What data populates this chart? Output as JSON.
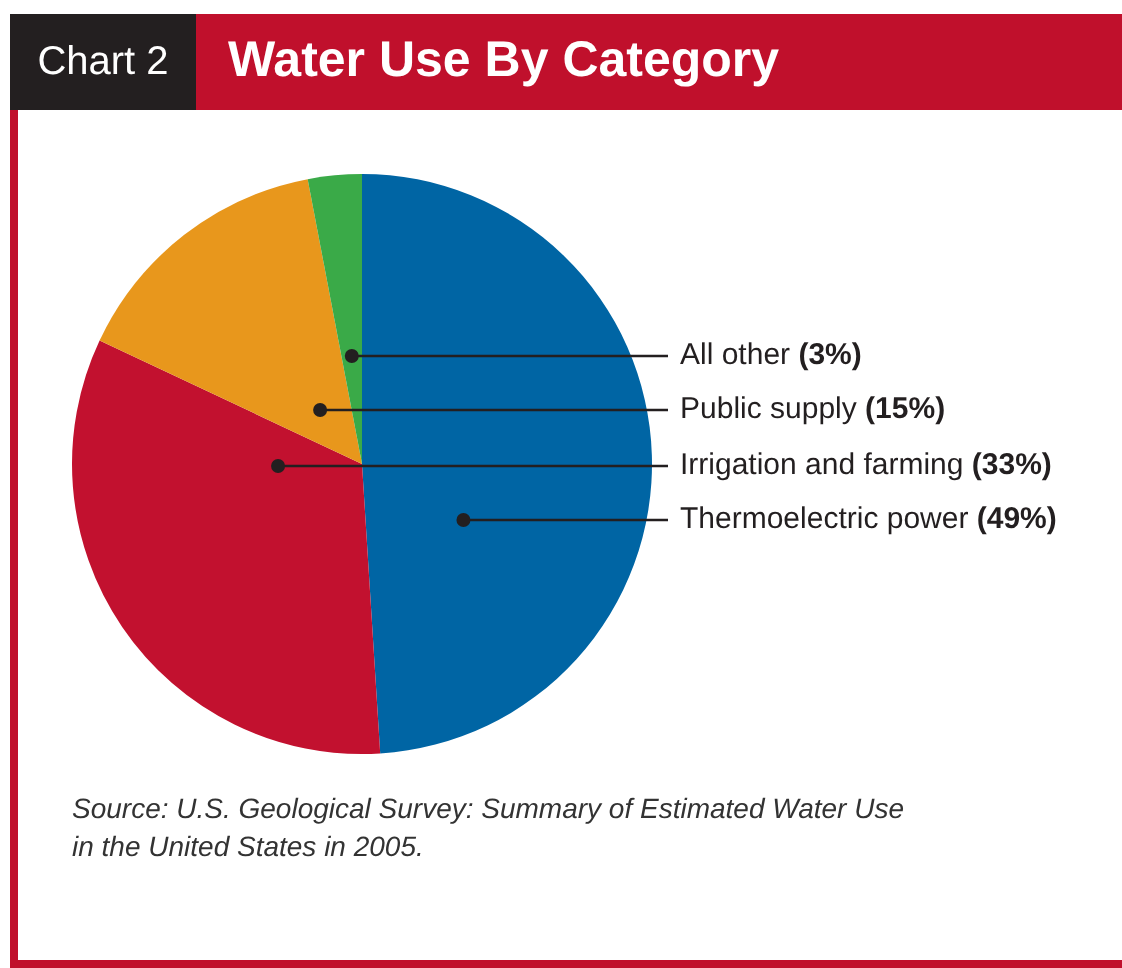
{
  "chart_data": {
    "type": "pie",
    "title": "Water Use By Category",
    "annotations": [
      "Chart 2",
      "Source: U.S. Geological Survey: Summary of Estimated Water Use in the United States in 2005."
    ],
    "categories": [
      "Thermoelectric power",
      "Irrigation and farming",
      "Public supply",
      "All other"
    ],
    "values": [
      49,
      33,
      15,
      3
    ],
    "value_labels": [
      "(49%)",
      "(33%)",
      "(15%)",
      "(3%)"
    ],
    "colors": [
      "#0065a4",
      "#c2112f",
      "#e8971c",
      "#3aaa48"
    ]
  }
}
